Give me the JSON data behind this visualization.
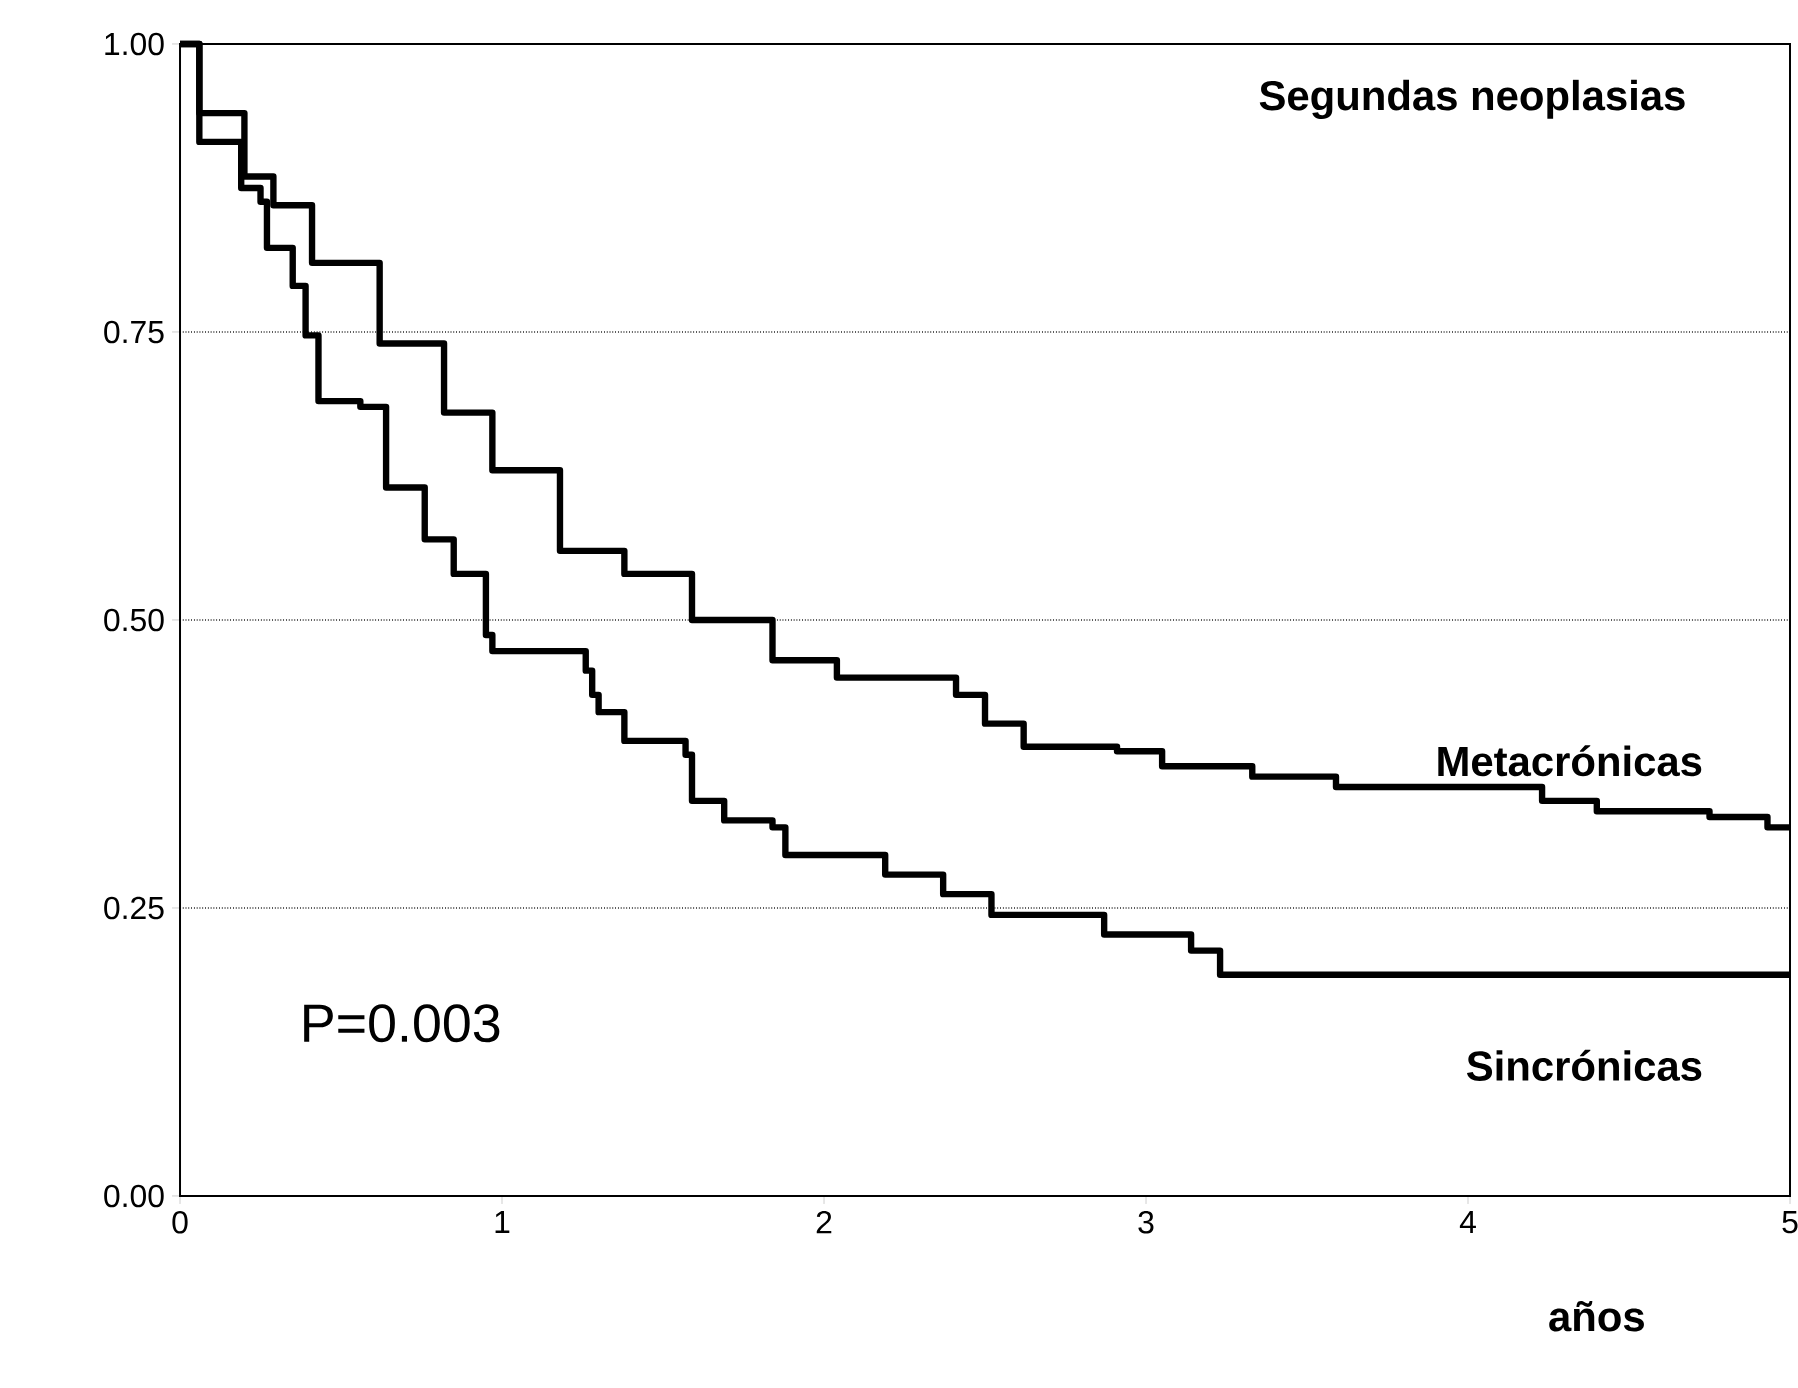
{
  "chart_data": {
    "type": "step",
    "title": "Segundas neoplasias",
    "xlabel": "años",
    "annotations": [
      "P=0.003"
    ],
    "series": [
      {
        "name": "Metacrónicas",
        "color": "#000000",
        "x": [
          0,
          0.06,
          0.2,
          0.29,
          0.41,
          0.62,
          0.82,
          0.97,
          1.18,
          1.38,
          1.59,
          1.84,
          2.04,
          2.41,
          2.5,
          2.62,
          2.91,
          3.05,
          3.33,
          3.59,
          4.23,
          4.4,
          4.75,
          4.93,
          5
        ],
        "values": [
          1,
          0.94,
          0.885,
          0.86,
          0.81,
          0.74,
          0.68,
          0.63,
          0.56,
          0.54,
          0.5,
          0.465,
          0.45,
          0.435,
          0.41,
          0.39,
          0.386,
          0.373,
          0.364,
          0.355,
          0.343,
          0.334,
          0.329,
          0.32,
          0.32
        ]
      },
      {
        "name": "Sincrónicas",
        "color": "#000000",
        "x": [
          0,
          0.06,
          0.19,
          0.25,
          0.27,
          0.35,
          0.39,
          0.43,
          0.56,
          0.64,
          0.76,
          0.85,
          0.95,
          0.97,
          1.26,
          1.28,
          1.3,
          1.38,
          1.57,
          1.59,
          1.69,
          1.84,
          1.88,
          2.19,
          2.37,
          2.52,
          2.87,
          3.14,
          3.23,
          5
        ],
        "values": [
          1,
          0.915,
          0.875,
          0.863,
          0.823,
          0.79,
          0.747,
          0.69,
          0.685,
          0.615,
          0.57,
          0.54,
          0.487,
          0.473,
          0.456,
          0.435,
          0.42,
          0.395,
          0.383,
          0.343,
          0.326,
          0.32,
          0.296,
          0.279,
          0.262,
          0.244,
          0.227,
          0.213,
          0.192,
          0.192
        ]
      }
    ],
    "xlim": [
      0,
      5
    ],
    "xticks": [
      0,
      1,
      2,
      3,
      4,
      5
    ],
    "ylim": [
      0,
      1
    ],
    "yticks": [
      {
        "value": 0,
        "label": "0.00"
      },
      {
        "value": 0.25,
        "label": "0.25"
      },
      {
        "value": 0.5,
        "label": "0.50"
      },
      {
        "value": 0.75,
        "label": "0.75"
      },
      {
        "value": 1,
        "label": "1.00"
      }
    ],
    "grid": "y",
    "legend": false,
    "line_style": "solid",
    "marker": "none"
  }
}
